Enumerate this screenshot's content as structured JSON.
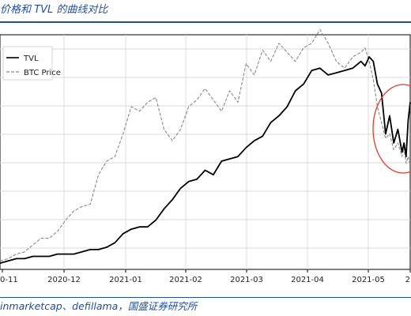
{
  "header": {
    "title": "价格和 TVL 的曲线对比"
  },
  "footer": {
    "source": "inmarketcap、defillama，国盛证券研究所"
  },
  "chart_data": {
    "type": "line",
    "title": "价格和 TVL 的曲线对比",
    "xlabel": "",
    "ylabel": "",
    "x_ticks": [
      "0-11",
      "2020-12",
      "2021-01",
      "2021-02",
      "2021-03",
      "2021-04",
      "2021-05",
      "2"
    ],
    "grid": true,
    "legend": "top-left",
    "y_scale": "normalized, unlabeled",
    "ylim": [
      0,
      100
    ],
    "xlim": [
      0,
      100
    ],
    "series": [
      {
        "name": "TVL",
        "style": "solid",
        "color": "#000000",
        "x": [
          0,
          2,
          4,
          6,
          8,
          10,
          12,
          14,
          16,
          18,
          20,
          22,
          24,
          26,
          28,
          30,
          32,
          34,
          36,
          38,
          40,
          42,
          44,
          46,
          48,
          50,
          52,
          54,
          56,
          58,
          60,
          62,
          64,
          66,
          68,
          70,
          72,
          74,
          76,
          78,
          80,
          82,
          84,
          86,
          88,
          89,
          90,
          91,
          92,
          93,
          94,
          95,
          96,
          97,
          98,
          98.5,
          99,
          99.5,
          100
        ],
        "values": [
          1,
          2,
          3,
          3,
          4,
          4,
          4,
          5,
          5,
          5,
          6,
          7,
          7,
          8,
          10,
          14,
          16,
          17,
          17,
          20,
          25,
          29,
          34,
          37,
          38,
          42,
          40,
          46,
          47,
          48,
          52,
          55,
          57,
          63,
          66,
          70,
          77,
          80,
          86,
          87,
          84,
          85,
          86,
          87,
          90,
          88,
          92,
          90,
          80,
          76,
          58,
          66,
          54,
          60,
          50,
          54,
          48,
          64,
          72
        ]
      },
      {
        "name": "BTC Price",
        "style": "dashed",
        "color": "#888888",
        "x": [
          0,
          2,
          4,
          6,
          8,
          10,
          12,
          14,
          16,
          18,
          20,
          22,
          24,
          26,
          28,
          30,
          32,
          34,
          36,
          38,
          40,
          42,
          44,
          46,
          48,
          50,
          52,
          54,
          56,
          58,
          60,
          62,
          64,
          66,
          68,
          70,
          72,
          74,
          76,
          78,
          80,
          82,
          84,
          86,
          88,
          89,
          90,
          91,
          92,
          93,
          94,
          95,
          96,
          97,
          98,
          98.5,
          99,
          99.5,
          100
        ],
        "values": [
          2,
          3,
          5,
          6,
          9,
          12,
          12,
          15,
          20,
          24,
          26,
          27,
          40,
          46,
          48,
          58,
          70,
          68,
          72,
          74,
          60,
          55,
          60,
          70,
          73,
          78,
          73,
          68,
          77,
          72,
          89,
          84,
          95,
          90,
          98,
          94,
          90,
          96,
          98,
          104,
          98,
          90,
          87,
          92,
          94,
          96,
          90,
          82,
          70,
          63,
          56,
          58,
          51,
          54,
          48,
          52,
          45,
          48,
          44
        ]
      }
    ]
  }
}
